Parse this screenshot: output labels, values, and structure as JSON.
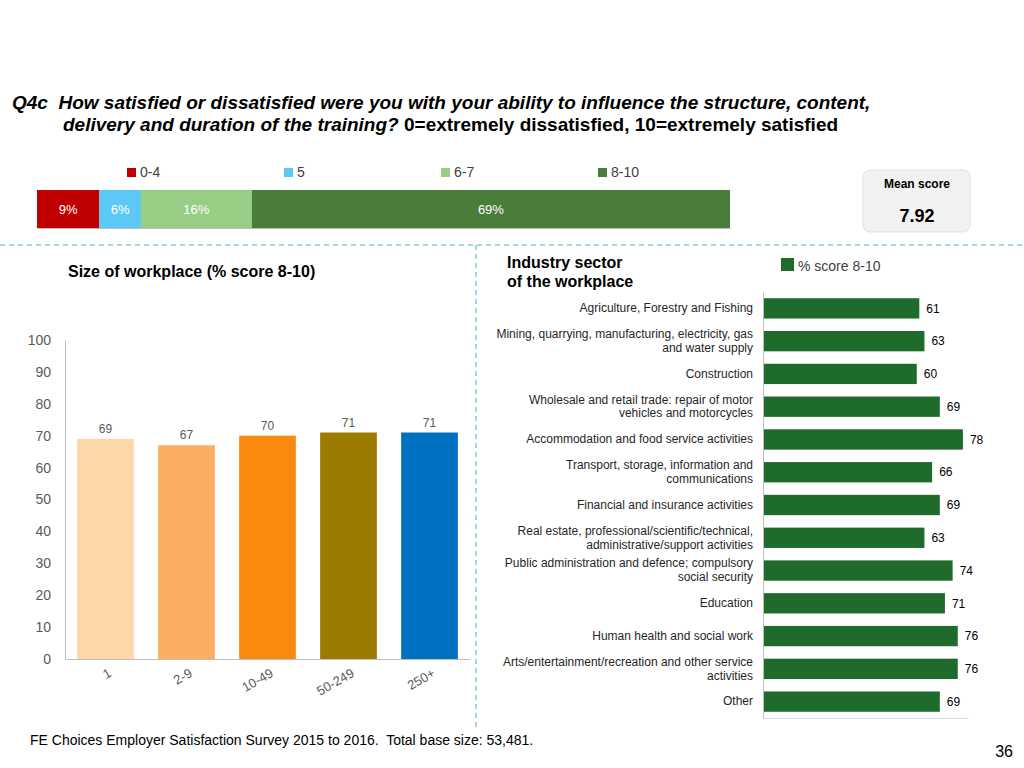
{
  "page": {
    "question_id": "Q4c",
    "question": "How satisfied or dissatisfied were you with your ability to influence the structure, content, delivery and duration of the training?",
    "scale_note": "0=extremely dissatisfied, 10=extremely satisfied",
    "mean_score_label": "Mean score",
    "mean_score": 7.92,
    "footnote": "FE Choices Employer Satisfaction Survey 2015 to 2016.  Total base size: 53,481.",
    "page_number": 36
  },
  "chart_data": [
    {
      "type": "bar",
      "orientation": "horizontal",
      "stacked": true,
      "categories": [
        null
      ],
      "series": [
        {
          "name": "0-4",
          "color": "#c00000",
          "values": [
            9
          ],
          "value_labels": [
            "9%"
          ]
        },
        {
          "name": "5",
          "color": "#5bc8f5",
          "values": [
            6
          ],
          "value_labels": [
            "6%"
          ]
        },
        {
          "name": "6-7",
          "color": "#98cd86",
          "values": [
            16
          ],
          "value_labels": [
            "16%"
          ]
        },
        {
          "name": "8-10",
          "color": "#4a7d3a",
          "values": [
            69
          ],
          "value_labels": [
            "69%"
          ]
        }
      ],
      "xlim": [
        0,
        100
      ],
      "tick_labels": false,
      "data_labels": true,
      "legend": "top"
    },
    {
      "type": "bar",
      "title": "Size of workplace (% score 8-10)",
      "categories": [
        "1",
        "2-9",
        "10-49",
        "50-249",
        "250+"
      ],
      "values": [
        69,
        67,
        70,
        71,
        71
      ],
      "colors": [
        "#fdd7aa",
        "#fbae5f",
        "#f98a0f",
        "#9b7b00",
        "#0070c0"
      ],
      "ylim": [
        0,
        100
      ],
      "yticks": [
        0,
        10,
        20,
        30,
        40,
        50,
        60,
        70,
        80,
        90,
        100
      ],
      "grid": false,
      "data_labels": true
    },
    {
      "type": "bar",
      "orientation": "horizontal",
      "title": "Industry sector of the workplace",
      "categories": [
        "Agriculture, Forestry and Fishing",
        "Mining, quarrying, manufacturing, electricity, gas and water supply",
        "Construction",
        "Wholesale and retail trade: repair of motor vehicles and motorcycles",
        "Accommodation and food service activities",
        "Transport, storage, information and communications",
        "Financial and insurance activities",
        "Real estate, professional/scientific/technical, administrative/support activities",
        "Public administration and defence; compulsory social security",
        "Education",
        "Human health and social work",
        "Arts/entertainment/recreation and other service activities",
        "Other"
      ],
      "series": [
        {
          "name": "% score 8-10",
          "color": "#1f6b2b",
          "values": [
            61,
            63,
            60,
            69,
            78,
            66,
            69,
            63,
            74,
            71,
            76,
            76,
            69
          ]
        }
      ],
      "xlim": [
        0,
        80
      ],
      "tick_labels": "y",
      "data_labels": true,
      "legend": "top-right"
    }
  ]
}
